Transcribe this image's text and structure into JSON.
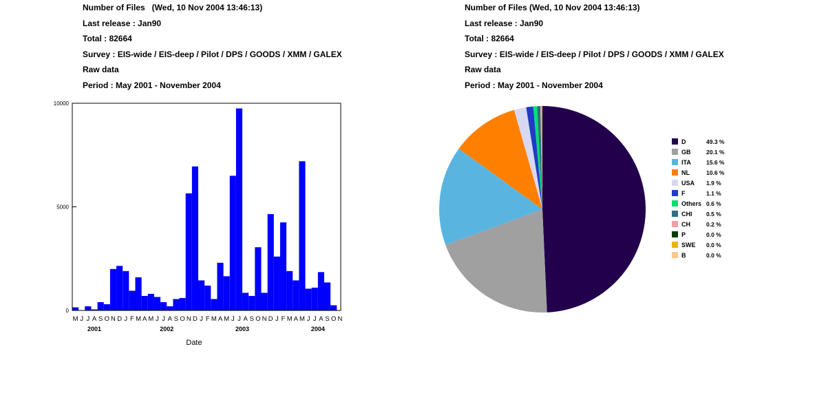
{
  "headers": {
    "left": {
      "title": "Number of Files   (Wed, 10 Nov 2004 13:46:13)",
      "release": "Last release : Jan90",
      "total": "Total : 82664",
      "survey": "Survey : EIS-wide / EIS-deep / Pilot / DPS / GOODS / XMM / GALEX",
      "data_type": "Raw data",
      "period": "Period : May 2001 - November 2004"
    },
    "right": {
      "title": "Number of Files (Wed, 10 Nov 2004 13:46:13)",
      "release": "Last release : Jan90",
      "total": "Total : 82664",
      "survey": "Survey : EIS-wide / EIS-deep / Pilot / DPS / GOODS / XMM / GALEX",
      "data_type": "Raw data",
      "period": "Period : May 2001 - November 2004"
    }
  },
  "chart_data": [
    {
      "type": "bar",
      "title": "",
      "xlabel": "Date",
      "ylabel": "",
      "ylim": [
        0,
        10000
      ],
      "yticks": [
        0,
        5000,
        10000
      ],
      "bar_color": "#0000ff",
      "categories": [
        "M",
        "J",
        "J",
        "A",
        "S",
        "O",
        "N",
        "D",
        "J",
        "F",
        "M",
        "A",
        "M",
        "J",
        "J",
        "A",
        "S",
        "O",
        "N",
        "D",
        "J",
        "F",
        "M",
        "A",
        "M",
        "J",
        "J",
        "A",
        "S",
        "O",
        "N",
        "D",
        "J",
        "F",
        "M",
        "A",
        "M",
        "J",
        "J",
        "A",
        "S",
        "O",
        "N"
      ],
      "values": [
        150,
        0,
        200,
        50,
        400,
        300,
        2000,
        2150,
        1900,
        950,
        1600,
        700,
        800,
        650,
        400,
        200,
        550,
        600,
        5650,
        6950,
        1450,
        1200,
        550,
        2300,
        1650,
        6500,
        9750,
        850,
        700,
        3050,
        850,
        4650,
        2600,
        4250,
        1900,
        1450,
        7200,
        1050,
        1100,
        1850,
        1350,
        250,
        0
      ],
      "years": [
        {
          "label": "2001",
          "center_index": 3
        },
        {
          "label": "2002",
          "center_index": 14.5
        },
        {
          "label": "2003",
          "center_index": 26.5
        },
        {
          "label": "2004",
          "center_index": 38.5
        }
      ]
    },
    {
      "type": "pie",
      "title": "",
      "slices": [
        {
          "label": "D",
          "pct_text": "49.3 %",
          "value": 49.3,
          "color": "#22004c"
        },
        {
          "label": "GB",
          "pct_text": "20.1 %",
          "value": 20.1,
          "color": "#a0a0a0"
        },
        {
          "label": "ITA",
          "pct_text": "15.6 %",
          "value": 15.6,
          "color": "#5ab4e0"
        },
        {
          "label": "NL",
          "pct_text": "10.6 %",
          "value": 10.6,
          "color": "#ff8000"
        },
        {
          "label": "USA",
          "pct_text": "1.9 %",
          "value": 1.9,
          "color": "#d8d8f0"
        },
        {
          "label": "F",
          "pct_text": "1.1 %",
          "value": 1.1,
          "color": "#1e3cc8"
        },
        {
          "label": "Others",
          "pct_text": "0.6 %",
          "value": 0.6,
          "color": "#00e070"
        },
        {
          "label": "CHI",
          "pct_text": "0.5 %",
          "value": 0.5,
          "color": "#2e7080"
        },
        {
          "label": "CH",
          "pct_text": "0.2 %",
          "value": 0.2,
          "color": "#f0a0a8"
        },
        {
          "label": "P",
          "pct_text": "0.0 %",
          "value": 0.04,
          "color": "#004000"
        },
        {
          "label": "SWE",
          "pct_text": "0.0 %",
          "value": 0.04,
          "color": "#f0b400"
        },
        {
          "label": "B",
          "pct_text": "0.0 %",
          "value": 0.04,
          "color": "#f8c890"
        }
      ]
    }
  ]
}
